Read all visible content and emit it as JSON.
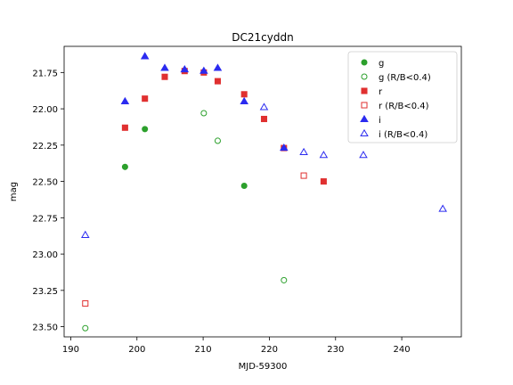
{
  "chart_data": {
    "type": "scatter",
    "title": "DC21cyddn",
    "xlabel": "MJD-59300",
    "ylabel": "mag",
    "xlim": [
      189,
      249
    ],
    "ylim": [
      23.57,
      21.57
    ],
    "y_inverted": true,
    "x_ticks": [
      190,
      200,
      210,
      220,
      230,
      240
    ],
    "y_ticks": [
      21.75,
      22.0,
      22.25,
      22.5,
      22.75,
      23.0,
      23.25,
      23.5
    ],
    "x_tick_labels": [
      "190",
      "200",
      "210",
      "220",
      "230",
      "240"
    ],
    "y_tick_labels": [
      "21.75",
      "22.00",
      "22.25",
      "22.50",
      "22.75",
      "23.00",
      "23.25",
      "23.50"
    ],
    "grid": false,
    "legend_position": "upper right",
    "series": [
      {
        "name": "g",
        "marker": "circle",
        "fill": "filled",
        "color": "#2ca02c",
        "points": [
          [
            198.2,
            22.4
          ],
          [
            201.2,
            22.14
          ],
          [
            216.2,
            22.53
          ]
        ]
      },
      {
        "name": "g (R/B<0.4)",
        "marker": "circle",
        "fill": "open",
        "color": "#2ca02c",
        "points": [
          [
            192.2,
            23.51
          ],
          [
            210.1,
            22.03
          ],
          [
            212.2,
            22.22
          ],
          [
            222.2,
            23.18
          ]
        ]
      },
      {
        "name": "r",
        "marker": "square",
        "fill": "filled",
        "color": "#e03030",
        "points": [
          [
            198.2,
            22.13
          ],
          [
            201.2,
            21.93
          ],
          [
            204.2,
            21.78
          ],
          [
            207.2,
            21.74
          ],
          [
            210.1,
            21.75
          ],
          [
            212.2,
            21.81
          ],
          [
            216.2,
            21.9
          ],
          [
            219.2,
            22.07
          ],
          [
            222.2,
            22.27
          ],
          [
            228.2,
            22.5
          ]
        ]
      },
      {
        "name": "r (R/B<0.4)",
        "marker": "square",
        "fill": "open",
        "color": "#e03030",
        "points": [
          [
            192.2,
            23.34
          ],
          [
            225.2,
            22.46
          ]
        ]
      },
      {
        "name": "i",
        "marker": "triangle",
        "fill": "filled",
        "color": "#2b2bf0",
        "points": [
          [
            198.2,
            21.95
          ],
          [
            201.2,
            21.64
          ],
          [
            204.2,
            21.72
          ],
          [
            207.2,
            21.73
          ],
          [
            210.1,
            21.74
          ],
          [
            212.2,
            21.72
          ],
          [
            216.2,
            21.95
          ],
          [
            222.2,
            22.27
          ]
        ]
      },
      {
        "name": "i (R/B<0.4)",
        "marker": "triangle",
        "fill": "open",
        "color": "#2b2bf0",
        "points": [
          [
            192.2,
            22.87
          ],
          [
            219.2,
            21.99
          ],
          [
            225.2,
            22.3
          ],
          [
            228.2,
            22.32
          ],
          [
            234.2,
            22.32
          ],
          [
            246.2,
            22.69
          ]
        ]
      }
    ]
  }
}
